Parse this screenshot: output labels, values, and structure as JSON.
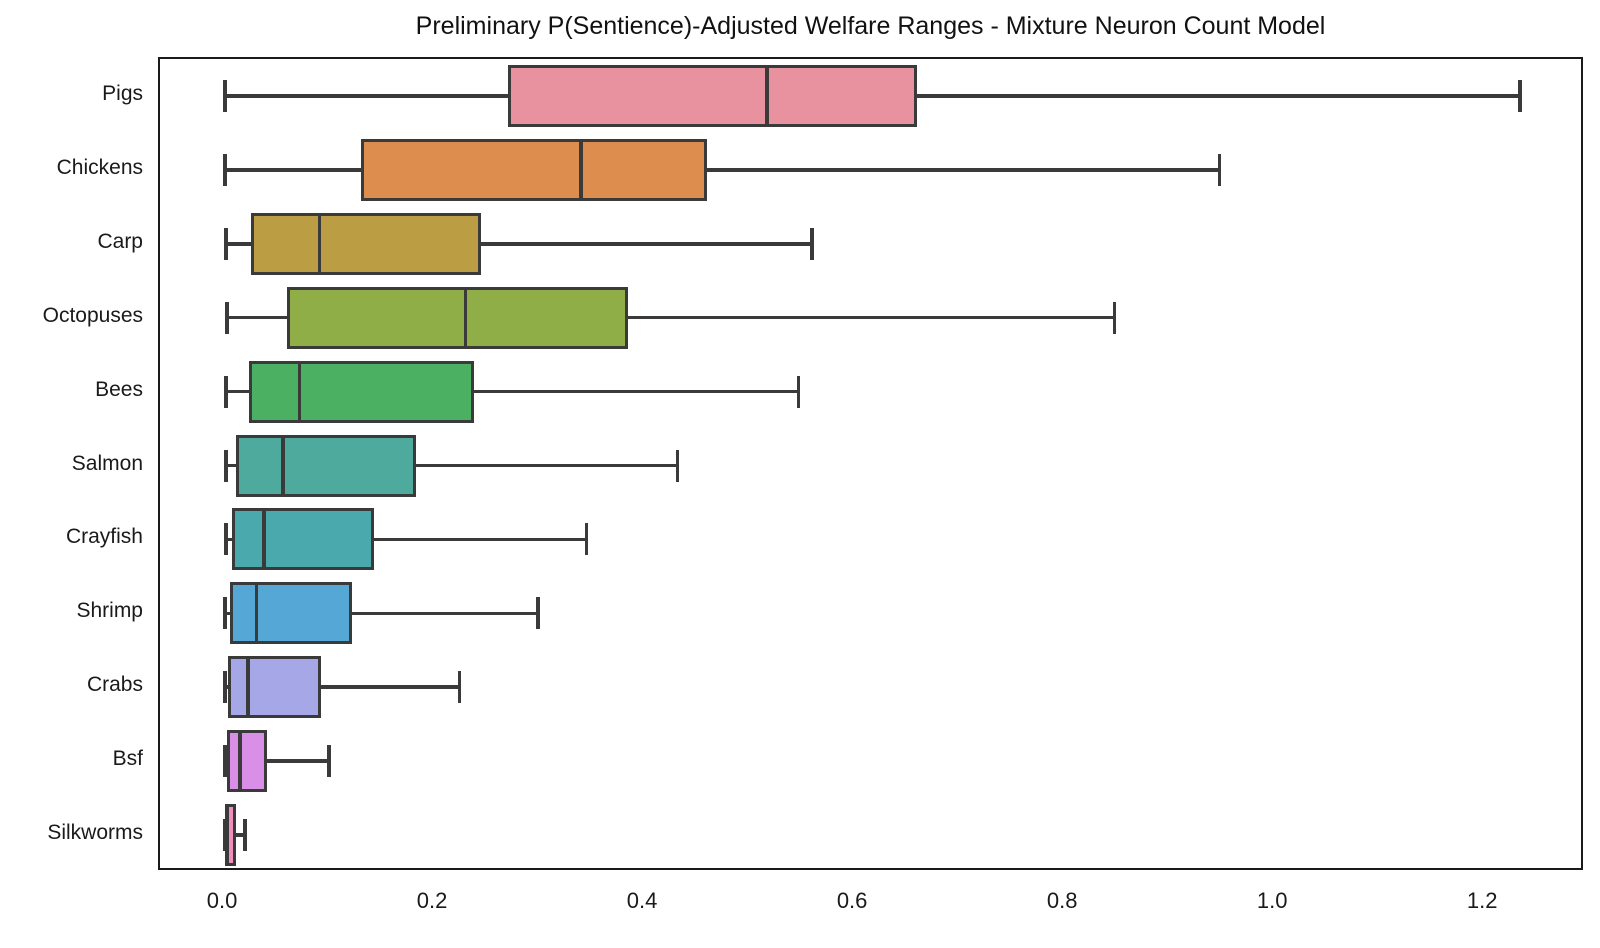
{
  "title": "Preliminary P(Sentience)-Adjusted Welfare Ranges - Mixture Neuron Count Model",
  "chart_data": {
    "type": "boxplot",
    "orientation": "horizontal",
    "title": "Preliminary P(Sentience)-Adjusted Welfare Ranges - Mixture Neuron Count Model",
    "xlabel": "",
    "ylabel": "",
    "xlim": [
      -0.061,
      1.296
    ],
    "grid": false,
    "edge_color": "#3a3a3a",
    "spine_color": "#1a1a1a",
    "xticks": [
      {
        "value": 0.0,
        "label": "0.0"
      },
      {
        "value": 0.2,
        "label": "0.2"
      },
      {
        "value": 0.4,
        "label": "0.4"
      },
      {
        "value": 0.6,
        "label": "0.6"
      },
      {
        "value": 0.8,
        "label": "0.8"
      },
      {
        "value": 1.0,
        "label": "1.0"
      },
      {
        "value": 1.2,
        "label": "1.2"
      }
    ],
    "categories": [
      "Pigs",
      "Chickens",
      "Carp",
      "Octopuses",
      "Bees",
      "Salmon",
      "Crayfish",
      "Shrimp",
      "Crabs",
      "Bsf",
      "Silkworms"
    ],
    "boxes": [
      {
        "label": "Pigs",
        "color": "#e8919f",
        "whisker_lo": 0.001,
        "q1": 0.27,
        "median": 0.517,
        "q3": 0.66,
        "whisker_hi": 1.234
      },
      {
        "label": "Chickens",
        "color": "#dd8d4d",
        "whisker_lo": 0.001,
        "q1": 0.13,
        "median": 0.34,
        "q3": 0.46,
        "whisker_hi": 0.948
      },
      {
        "label": "Carp",
        "color": "#bb9e43",
        "whisker_lo": 0.002,
        "q1": 0.026,
        "median": 0.091,
        "q3": 0.245,
        "whisker_hi": 0.56
      },
      {
        "label": "Octopuses",
        "color": "#8fae47",
        "whisker_lo": 0.003,
        "q1": 0.06,
        "median": 0.23,
        "q3": 0.385,
        "whisker_hi": 0.848
      },
      {
        "label": "Bees",
        "color": "#4cb062",
        "whisker_lo": 0.002,
        "q1": 0.024,
        "median": 0.072,
        "q3": 0.238,
        "whisker_hi": 0.547
      },
      {
        "label": "Salmon",
        "color": "#4daa9c",
        "whisker_lo": 0.002,
        "q1": 0.011,
        "median": 0.056,
        "q3": 0.183,
        "whisker_hi": 0.432
      },
      {
        "label": "Crayfish",
        "color": "#4aa9ad",
        "whisker_lo": 0.002,
        "q1": 0.008,
        "median": 0.038,
        "q3": 0.143,
        "whisker_hi": 0.345
      },
      {
        "label": "Shrimp",
        "color": "#55a8d5",
        "whisker_lo": 0.001,
        "q1": 0.006,
        "median": 0.031,
        "q3": 0.122,
        "whisker_hi": 0.299
      },
      {
        "label": "Crabs",
        "color": "#a6a7e7",
        "whisker_lo": 0.001,
        "q1": 0.004,
        "median": 0.023,
        "q3": 0.092,
        "whisker_hi": 0.224
      },
      {
        "label": "Bsf",
        "color": "#d98ee7",
        "whisker_lo": 0.001,
        "q1": 0.003,
        "median": 0.015,
        "q3": 0.041,
        "whisker_hi": 0.1
      },
      {
        "label": "Silkworms",
        "color": "#ee90bb",
        "whisker_lo": 0.0005,
        "q1": 0.001,
        "median": 0.003,
        "q3": 0.011,
        "whisker_hi": 0.02
      }
    ]
  }
}
